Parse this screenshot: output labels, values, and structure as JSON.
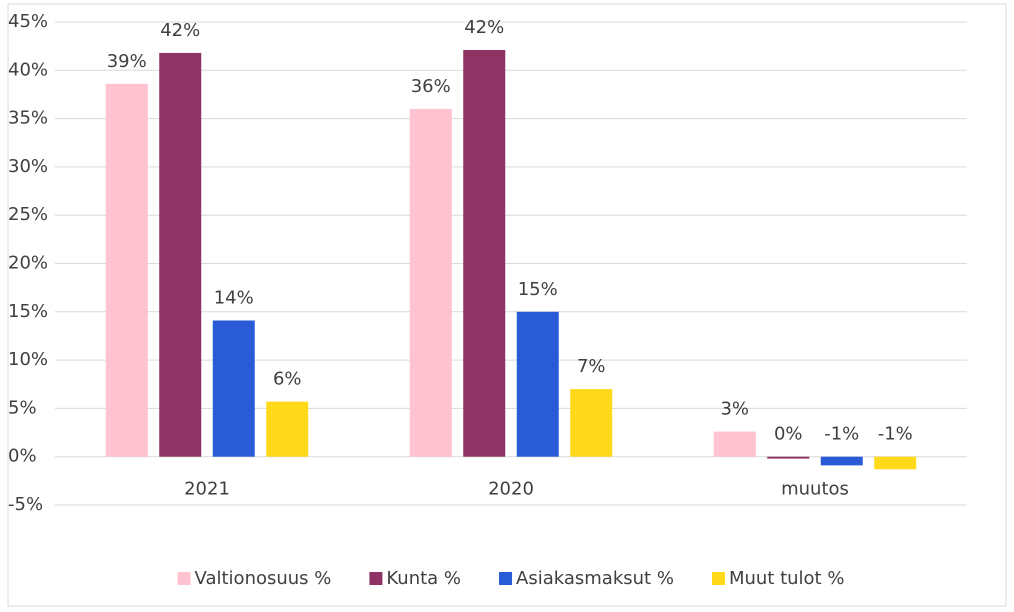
{
  "chart_data": {
    "type": "bar",
    "categories": [
      "2021",
      "2020",
      "muutos"
    ],
    "series": [
      {
        "name": "Valtionosuus %",
        "color": "#ffc2d1",
        "values": [
          38.6,
          36.0,
          2.6
        ],
        "value_labels": [
          "39%",
          "36%",
          "3%"
        ]
      },
      {
        "name": "Kunta %",
        "color": "#8e3363",
        "values": [
          41.8,
          42.1,
          -0.2
        ],
        "value_labels": [
          "42%",
          "42%",
          "0%"
        ]
      },
      {
        "name": "Asiakasmaksut %",
        "color": "#2a5bd7",
        "values": [
          14.1,
          15.0,
          -0.9
        ],
        "value_labels": [
          "14%",
          "15%",
          "-1%"
        ]
      },
      {
        "name": "Muut tulot %",
        "color": "#ffd91a",
        "values": [
          5.7,
          7.0,
          -1.3
        ],
        "value_labels": [
          "6%",
          "7%",
          "-1%"
        ]
      }
    ],
    "ylim": [
      -5,
      45
    ],
    "yticks": [
      {
        "value": -5,
        "label": "-5%"
      },
      {
        "value": 0,
        "label": "0%"
      },
      {
        "value": 5,
        "label": "5%"
      },
      {
        "value": 10,
        "label": "10%"
      },
      {
        "value": 15,
        "label": "15%"
      },
      {
        "value": 20,
        "label": "20%"
      },
      {
        "value": 25,
        "label": "25%"
      },
      {
        "value": 30,
        "label": "30%"
      },
      {
        "value": 35,
        "label": "35%"
      },
      {
        "value": 40,
        "label": "40%"
      },
      {
        "value": 45,
        "label": "45%"
      }
    ],
    "grid": true,
    "legend": "bottom"
  }
}
